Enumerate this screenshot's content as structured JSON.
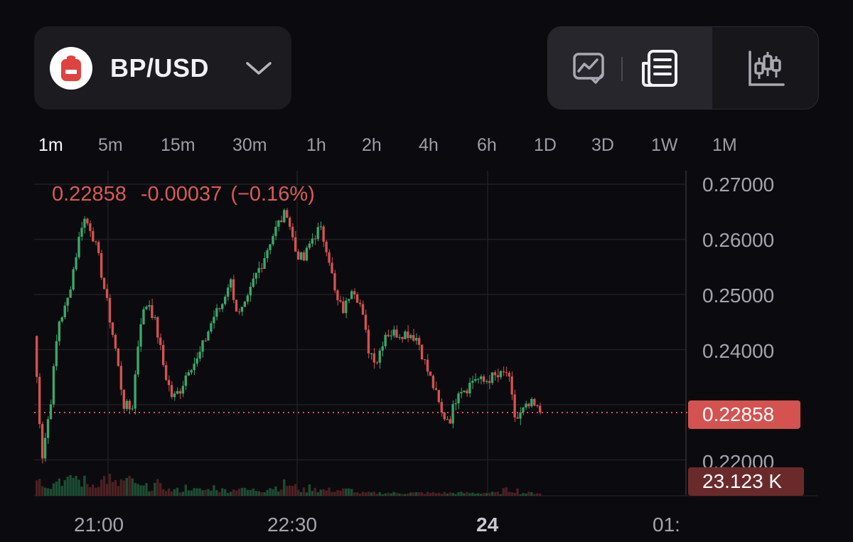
{
  "pair": {
    "name": "BP/USD",
    "logo_icon": "backpack-icon",
    "logo_color": "#e0433f"
  },
  "toolbar": {
    "buttons": [
      {
        "name": "line-chart-icon"
      },
      {
        "name": "order-book-icon"
      },
      {
        "name": "candlestick-chart-icon"
      }
    ]
  },
  "timeframes": [
    "1m",
    "5m",
    "15m",
    "30m",
    "1h",
    "2h",
    "4h",
    "6h",
    "1D",
    "3D",
    "1W",
    "1M"
  ],
  "active_timeframe": "1m",
  "readout": {
    "price": "0.22858",
    "change": "-0.00037",
    "change_pct": "(−0.16%)"
  },
  "current_price_tag": "0.22858",
  "volume_tag": "23.123 K",
  "colors": {
    "up": "#3aa86b",
    "down": "#d4524f",
    "background": "#0b0b0f",
    "grid": "#1e1e24"
  },
  "chart_data": {
    "type": "candlestick",
    "y_ticks": [
      "0.27000",
      "0.26000",
      "0.25000",
      "0.24000",
      "0.22000"
    ],
    "ylim": [
      0.217,
      0.272
    ],
    "x_ticks": [
      "21:00",
      "22:30",
      "24",
      "01:"
    ],
    "current_price": 0.22858,
    "close_path": [
      0.2425,
      0.2205,
      0.23,
      0.245,
      0.248,
      0.256,
      0.264,
      0.262,
      0.256,
      0.248,
      0.24,
      0.23,
      0.229,
      0.245,
      0.249,
      0.244,
      0.236,
      0.231,
      0.233,
      0.237,
      0.238,
      0.242,
      0.246,
      0.248,
      0.253,
      0.246,
      0.248,
      0.253,
      0.256,
      0.26,
      0.263,
      0.265,
      0.258,
      0.256,
      0.26,
      0.262,
      0.258,
      0.249,
      0.247,
      0.252,
      0.248,
      0.24,
      0.238,
      0.243,
      0.243,
      0.243,
      0.243,
      0.242,
      0.237,
      0.233,
      0.228,
      0.2275,
      0.233,
      0.233,
      0.235,
      0.234,
      0.235,
      0.235,
      0.236,
      0.227,
      0.229,
      0.23,
      0.2286
    ],
    "volume_relative": [
      0.9,
      0.5,
      0.4,
      0.6,
      0.5,
      0.7,
      0.5,
      0.4,
      0.5,
      0.6,
      0.4,
      0.5,
      0.5,
      0.3,
      0.3,
      0.4,
      0.3,
      0.2,
      0.2,
      0.3,
      0.2,
      0.2,
      0.3,
      0.2,
      0.2,
      0.3,
      0.2,
      0.2,
      0.2,
      0.3,
      0.3,
      0.4,
      0.3,
      0.2,
      0.3,
      0.2,
      0.2,
      0.2,
      0.2,
      0.2,
      0.1,
      0.1,
      0.1,
      0.1,
      0.1,
      0.1,
      0.1,
      0.1,
      0.1,
      0.1,
      0.1,
      0.1,
      0.1,
      0.1,
      0.1,
      0.1,
      0.1,
      0.1,
      0.2,
      0.2,
      0.1,
      0.1,
      0.1
    ]
  }
}
